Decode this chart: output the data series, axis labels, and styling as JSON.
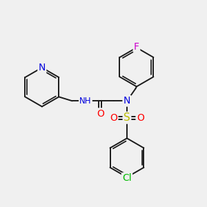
{
  "bg_color": "#f0f0f0",
  "bond_color": "#1a1a1a",
  "bond_width": 1.4,
  "dbo": 0.07,
  "atom_colors": {
    "N": "#0000dd",
    "O": "#ff0000",
    "S": "#bbbb00",
    "F": "#cc00cc",
    "Cl": "#00bb00",
    "H": "#666666"
  },
  "font_size": 9
}
